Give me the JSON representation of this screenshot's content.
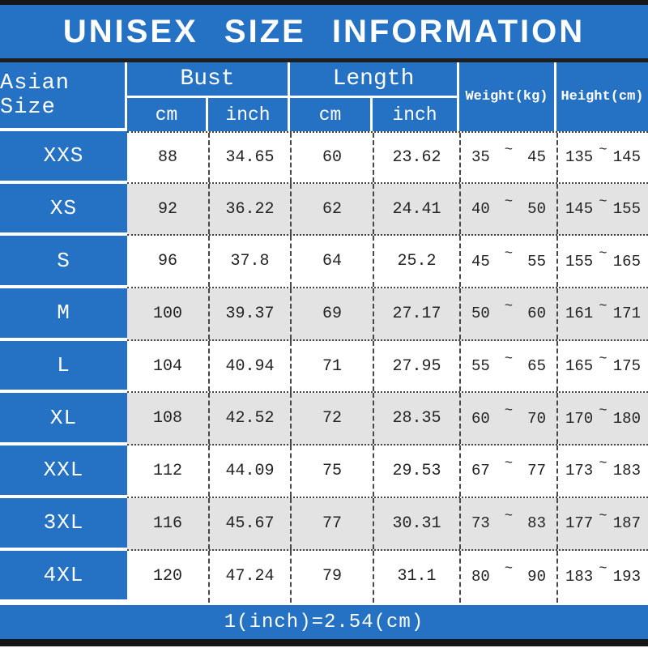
{
  "title": "UNISEX SIZE INFORMATION",
  "colors": {
    "header_blue": "#2571c3",
    "row_alt_gray": "#e4e3e4",
    "bar_black": "#161616",
    "grid_line": "#484848",
    "text_dark": "#232323",
    "white": "#ffffff"
  },
  "table": {
    "col_asian": "Asian Size",
    "group_bust": "Bust",
    "group_length": "Length",
    "sub_cm": "cm",
    "sub_inch": "inch",
    "col_weight": "Weight(kg)",
    "col_height": "Height(cm)",
    "tilde": "~",
    "rows": [
      {
        "size": "XXS",
        "bust_cm": "88",
        "bust_inch": "34.65",
        "length_cm": "60",
        "length_inch": "23.62",
        "weight_min": "35",
        "weight_max": "45",
        "height_min": "135",
        "height_max": "145"
      },
      {
        "size": "XS",
        "bust_cm": "92",
        "bust_inch": "36.22",
        "length_cm": "62",
        "length_inch": "24.41",
        "weight_min": "40",
        "weight_max": "50",
        "height_min": "145",
        "height_max": "155"
      },
      {
        "size": "S",
        "bust_cm": "96",
        "bust_inch": "37.8",
        "length_cm": "64",
        "length_inch": "25.2",
        "weight_min": "45",
        "weight_max": "55",
        "height_min": "155",
        "height_max": "165"
      },
      {
        "size": "M",
        "bust_cm": "100",
        "bust_inch": "39.37",
        "length_cm": "69",
        "length_inch": "27.17",
        "weight_min": "50",
        "weight_max": "60",
        "height_min": "161",
        "height_max": "171"
      },
      {
        "size": "L",
        "bust_cm": "104",
        "bust_inch": "40.94",
        "length_cm": "71",
        "length_inch": "27.95",
        "weight_min": "55",
        "weight_max": "65",
        "height_min": "165",
        "height_max": "175"
      },
      {
        "size": "XL",
        "bust_cm": "108",
        "bust_inch": "42.52",
        "length_cm": "72",
        "length_inch": "28.35",
        "weight_min": "60",
        "weight_max": "70",
        "height_min": "170",
        "height_max": "180"
      },
      {
        "size": "XXL",
        "bust_cm": "112",
        "bust_inch": "44.09",
        "length_cm": "75",
        "length_inch": "29.53",
        "weight_min": "67",
        "weight_max": "77",
        "height_min": "173",
        "height_max": "183"
      },
      {
        "size": "3XL",
        "bust_cm": "116",
        "bust_inch": "45.67",
        "length_cm": "77",
        "length_inch": "30.31",
        "weight_min": "73",
        "weight_max": "83",
        "height_min": "177",
        "height_max": "187"
      },
      {
        "size": "4XL",
        "bust_cm": "120",
        "bust_inch": "47.24",
        "length_cm": "79",
        "length_inch": "31.1",
        "weight_min": "80",
        "weight_max": "90",
        "height_min": "183",
        "height_max": "193"
      }
    ]
  },
  "footer": {
    "note": "1(inch)=2.54(cm)"
  },
  "chart_data": {
    "type": "table",
    "title": "UNISEX SIZE INFORMATION",
    "columns": [
      "Asian Size",
      "Bust cm",
      "Bust inch",
      "Length cm",
      "Length inch",
      "Weight(kg)",
      "Height(cm)"
    ],
    "rows": [
      [
        "XXS",
        88,
        34.65,
        60,
        23.62,
        "35~45",
        "135~145"
      ],
      [
        "XS",
        92,
        36.22,
        62,
        24.41,
        "40~50",
        "145~155"
      ],
      [
        "S",
        96,
        37.8,
        64,
        25.2,
        "45~55",
        "155~165"
      ],
      [
        "M",
        100,
        39.37,
        69,
        27.17,
        "50~60",
        "161~171"
      ],
      [
        "L",
        104,
        40.94,
        71,
        27.95,
        "55~65",
        "165~175"
      ],
      [
        "XL",
        108,
        42.52,
        72,
        28.35,
        "60~70",
        "170~180"
      ],
      [
        "XXL",
        112,
        44.09,
        75,
        29.53,
        "67~77",
        "173~183"
      ],
      [
        "3XL",
        116,
        45.67,
        77,
        30.31,
        "73~83",
        "177~187"
      ],
      [
        "4XL",
        120,
        47.24,
        79,
        31.1,
        "80~90",
        "183~193"
      ]
    ],
    "footnote": "1(inch)=2.54(cm)"
  }
}
